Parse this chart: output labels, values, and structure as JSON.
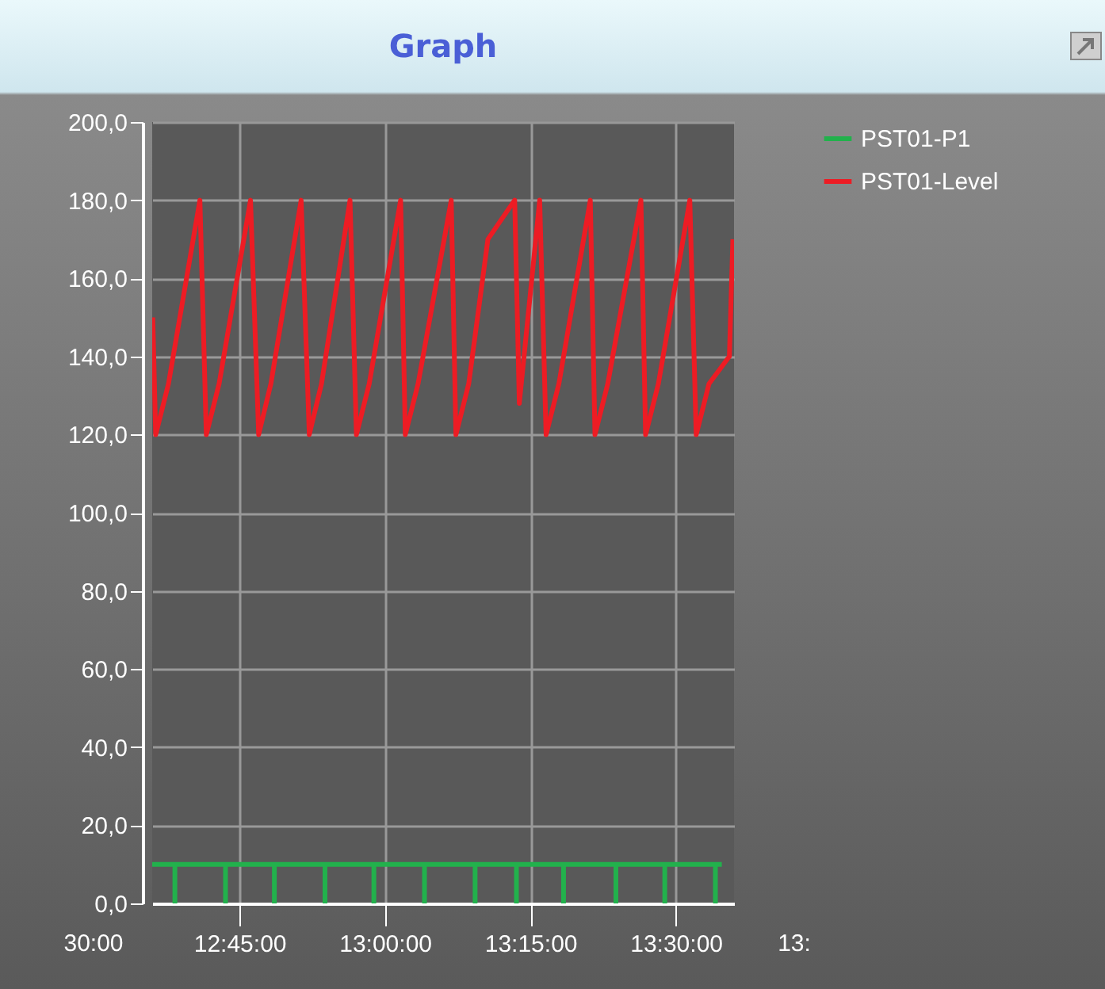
{
  "chart_data": {
    "type": "line",
    "title": "Graph",
    "xlim": [
      12.6,
      13.6
    ],
    "xticks": [
      {
        "value": 12.75,
        "label": "12:45:00"
      },
      {
        "value": 13,
        "label": "13:00:00"
      },
      {
        "value": 13.25,
        "label": "13:15:00"
      },
      {
        "value": 13.5,
        "label": "13:30:00"
      }
    ],
    "ylim": [
      0,
      200
    ],
    "yticks": [
      {
        "value": 0,
        "label": "0,0"
      },
      {
        "value": 20,
        "label": "20,0"
      },
      {
        "value": 40,
        "label": "40,0"
      },
      {
        "value": 60,
        "label": "60,0"
      },
      {
        "value": 80,
        "label": "80,0"
      },
      {
        "value": 100,
        "label": "100,0"
      },
      {
        "value": 120,
        "label": "120,0"
      },
      {
        "value": 140,
        "label": "140,0"
      },
      {
        "value": 160,
        "label": "160,0"
      },
      {
        "value": 180,
        "label": "180,0"
      },
      {
        "value": 200,
        "label": "200,0"
      }
    ],
    "grid": true,
    "legend": "top right",
    "annotations": [
      "30:00",
      "13:"
    ],
    "series": [
      {
        "name": "PST01-P1",
        "color": "#22b14c",
        "x": [
          12.6,
          12.639,
          12.639,
          12.639,
          12.726,
          12.726,
          12.726,
          12.81,
          12.81,
          12.81,
          12.897,
          12.897,
          12.897,
          12.981,
          12.981,
          12.981,
          13.068,
          13.068,
          13.068,
          13.155,
          13.155,
          13.155,
          13.226,
          13.226,
          13.226,
          13.307,
          13.307,
          13.307,
          13.397,
          13.397,
          13.397,
          13.481,
          13.481,
          13.481,
          13.568,
          13.568,
          13.568,
          13.579
        ],
        "values": [
          10,
          10,
          0,
          10,
          10,
          0,
          10,
          10,
          0,
          10,
          10,
          0,
          10,
          10,
          0,
          10,
          10,
          0,
          10,
          10,
          0,
          10,
          10,
          0,
          10,
          10,
          0,
          10,
          10,
          0,
          10,
          10,
          0,
          10,
          10,
          0,
          10,
          10
        ]
      },
      {
        "name": "PST01-Level",
        "color": "#ed1c24",
        "x": [
          12.601,
          12.606,
          12.628,
          12.682,
          12.693,
          12.715,
          12.769,
          12.783,
          12.804,
          12.856,
          12.87,
          12.891,
          12.94,
          12.951,
          12.973,
          13.027,
          13.035,
          13.057,
          13.114,
          13.122,
          13.144,
          13.177,
          13.223,
          13.231,
          13.266,
          13.277,
          13.299,
          13.353,
          13.361,
          13.383,
          13.44,
          13.448,
          13.47,
          13.524,
          13.535,
          13.557,
          13.592,
          13.598
        ],
        "values": [
          150,
          120,
          133,
          180,
          120,
          133,
          180,
          120,
          133,
          180,
          120,
          133,
          180,
          120,
          133,
          180,
          120,
          133,
          180,
          120,
          133,
          170,
          180,
          128,
          180,
          120,
          133,
          180,
          120,
          133,
          180,
          120,
          133,
          180,
          120,
          133,
          140,
          170
        ]
      }
    ]
  }
}
